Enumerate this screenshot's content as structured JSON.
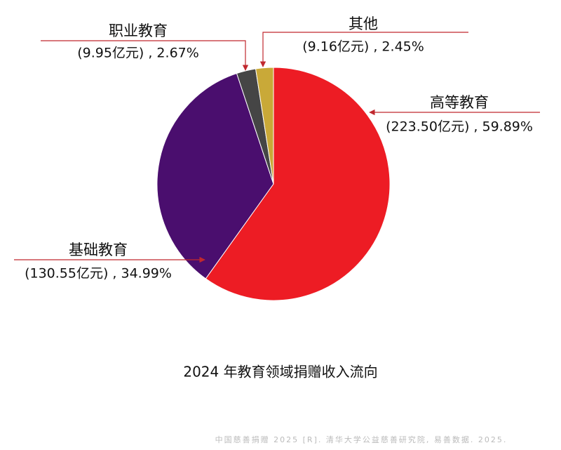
{
  "chart_data": {
    "type": "pie",
    "title": "2024 年教育领域捐赠收入流向",
    "source": "中国慈善捐赠 2025 [R]. 清华大学公益慈善研究院, 易善数据. 2025.",
    "categories": [
      "高等教育",
      "基础教育",
      "职业教育",
      "其他"
    ],
    "values": [
      59.89,
      34.99,
      2.67,
      2.45
    ],
    "value_labels": [
      "(223.50亿元) , 59.89%",
      "(130.55亿元) , 34.99%",
      "(9.95亿元) , 2.67%",
      "(9.16亿元) , 2.45%"
    ],
    "colors": [
      "#ed1c24",
      "#4a0e6e",
      "#454545",
      "#c9a938"
    ]
  }
}
